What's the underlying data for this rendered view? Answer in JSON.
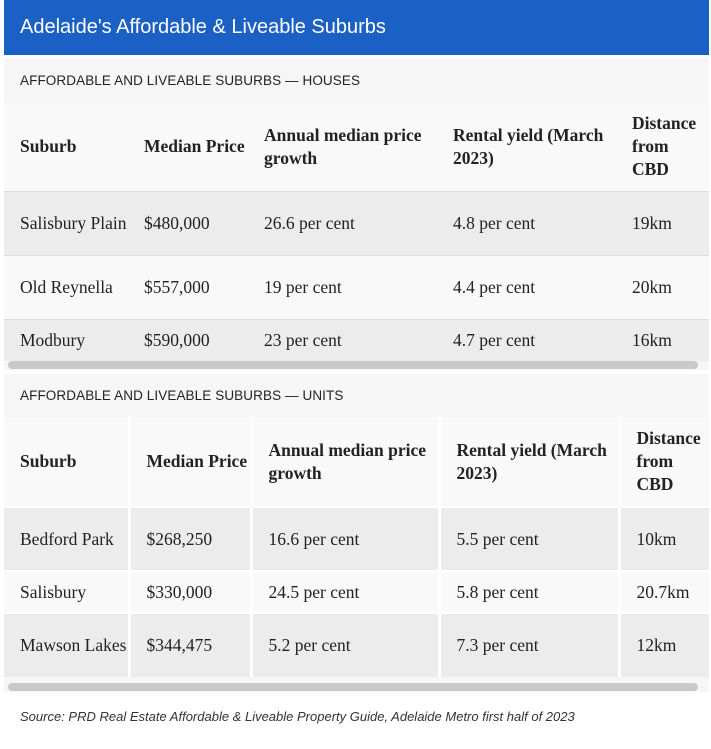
{
  "header": {
    "title": "Adelaide's Affordable & Liveable Suburbs"
  },
  "columns": [
    "Suburb",
    "Median Price",
    "Annual median price growth",
    "Rental yield (March 2023)",
    "Distance from CBD"
  ],
  "houses": {
    "title": "AFFORDABLE AND LIVEABLE SUBURBS — HOUSES",
    "rows": [
      [
        "Salisbury Plain",
        "$480,000",
        "26.6 per cent",
        "4.8 per cent",
        "19km"
      ],
      [
        "Old Reynella",
        "$557,000",
        "19 per cent",
        "4.4 per cent",
        "20km"
      ],
      [
        "Modbury",
        "$590,000",
        "23 per cent",
        "4.7 per cent",
        "16km"
      ]
    ]
  },
  "units": {
    "title": "AFFORDABLE AND LIVEABLE SUBURBS — UNITS",
    "rows": [
      [
        "Bedford Park",
        "$268,250",
        "16.6 per cent",
        "5.5 per cent",
        "10km"
      ],
      [
        "Salisbury",
        "$330,000",
        "24.5 per cent",
        "5.8 per cent",
        "20.7km"
      ],
      [
        "Mawson Lakes",
        "$344,475",
        "5.2 per cent",
        "7.3 per cent",
        "12km"
      ]
    ]
  },
  "source": "Source: PRD Real Estate Affordable & Liveable Property Guide, Adelaide Metro first half of 2023"
}
